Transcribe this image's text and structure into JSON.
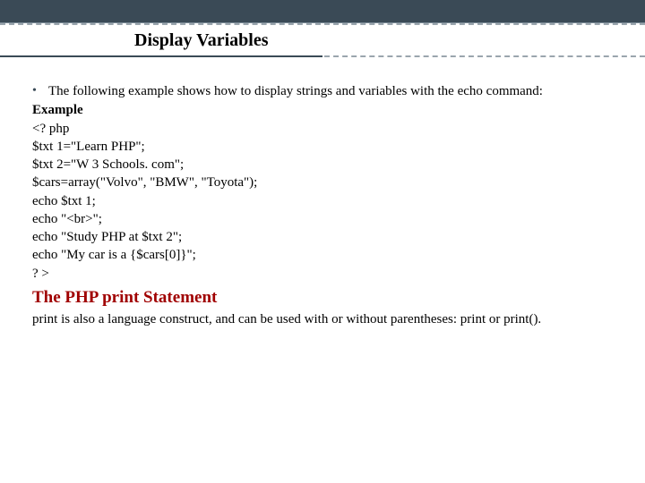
{
  "colors": {
    "header_bg": "#3a4a56",
    "dash": "#9aa5ad",
    "subhead": "#a00000",
    "text": "#000000",
    "page_bg": "#ffffff"
  },
  "title": "Display Variables",
  "bullet_text": "The following example shows how to display strings and variables with the echo command:",
  "example_label": "Example",
  "code_lines": [
    "<? php",
    "$txt 1=\"Learn PHP\";",
    "$txt 2=\"W 3 Schools. com\";",
    "$cars=array(\"Volvo\", \"BMW\", \"Toyota\");",
    "echo $txt 1;",
    "echo \"<br>\";",
    "echo \"Study PHP at $txt 2\";",
    "echo \"My car is a {$cars[0]}\";",
    "? >"
  ],
  "subhead": "The PHP print Statement",
  "paragraph": "print is also a language construct, and can be used with or without parentheses: print or print()."
}
